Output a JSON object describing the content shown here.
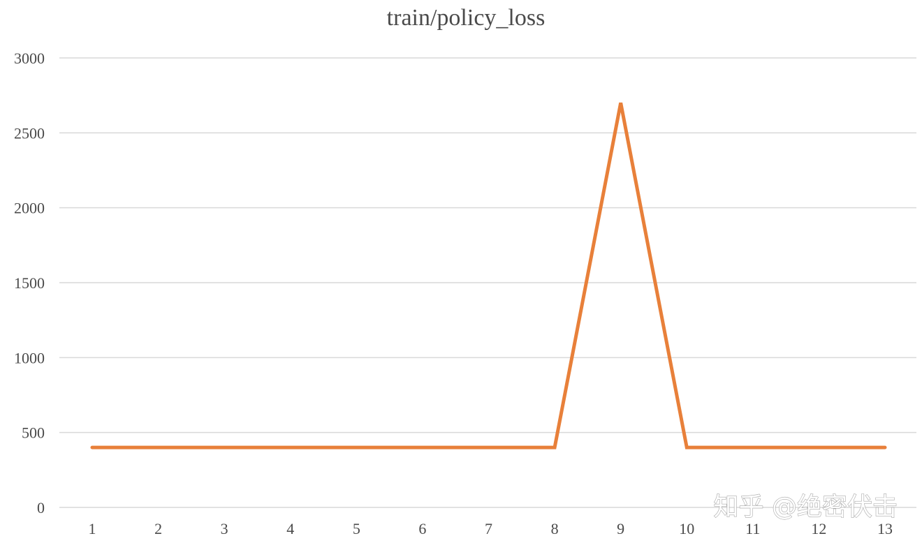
{
  "watermark": "知乎 @绝密伏击",
  "chart_data": {
    "type": "line",
    "title": "train/policy_loss",
    "xlabel": "",
    "ylabel": "",
    "categories": [
      "1",
      "2",
      "3",
      "4",
      "5",
      "6",
      "7",
      "8",
      "9",
      "10",
      "11",
      "12",
      "13"
    ],
    "ylim": [
      0,
      3000
    ],
    "yticks": [
      "0",
      "500",
      "1000",
      "1500",
      "2000",
      "2500",
      "3000"
    ],
    "grid": true,
    "legend": "none",
    "series": [
      {
        "values": [
          400,
          400,
          400,
          400,
          400,
          400,
          400,
          400,
          2700,
          400,
          400,
          400,
          400
        ],
        "color": "#e8803a"
      }
    ]
  }
}
